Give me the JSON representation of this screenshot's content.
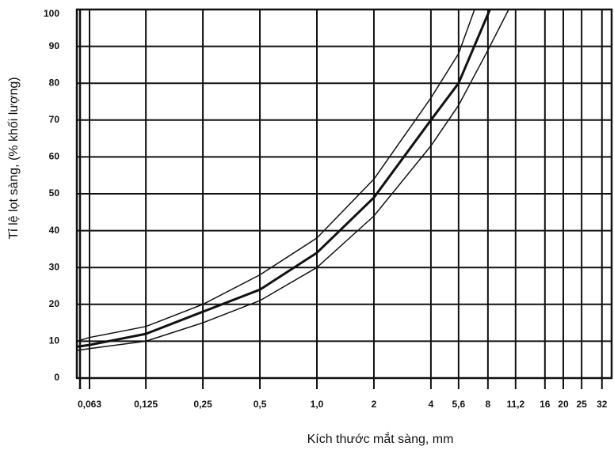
{
  "chart_data": {
    "type": "line",
    "log_x": true,
    "grid": true,
    "color": "#111",
    "x_label": "Kích thước mắt sàng, mm",
    "y_label": "Tỉ lệ lọt sàng, (% khối lượng)",
    "xlim": [
      0.054,
      36
    ],
    "ylim": [
      0,
      100
    ],
    "xticks": [
      {
        "value": 0.063,
        "label": "0,063"
      },
      {
        "value": 0.125,
        "label": "0,125"
      },
      {
        "value": 0.25,
        "label": "0,25"
      },
      {
        "value": 0.5,
        "label": "0,5"
      },
      {
        "value": 1,
        "label": "1,0"
      },
      2,
      4,
      {
        "value": 5.6,
        "label": "5,6"
      },
      8,
      {
        "value": 11.2,
        "label": "11,2"
      },
      16,
      20,
      25,
      32
    ],
    "yticks": [
      0,
      10,
      20,
      30,
      40,
      50,
      60,
      70,
      80,
      90,
      100
    ],
    "series": [
      {
        "width": 1.5,
        "x": [
          0.054,
          0.063,
          0.125,
          0.25,
          0.5,
          1,
          2,
          4,
          5.6,
          6.8
        ],
        "values": [
          10,
          11,
          14,
          20,
          28,
          38,
          54,
          76,
          88,
          100
        ]
      },
      {
        "width": 3,
        "x": [
          0.054,
          0.063,
          0.125,
          0.25,
          0.5,
          1,
          2,
          4,
          5.6,
          8.2
        ],
        "values": [
          8.5,
          9,
          12,
          18,
          24,
          34,
          49,
          70,
          80,
          100
        ]
      },
      {
        "width": 1.5,
        "x": [
          0.054,
          0.063,
          0.125,
          0.25,
          0.5,
          1,
          2,
          4,
          5.6,
          8,
          10.3
        ],
        "values": [
          7.5,
          8,
          10,
          15,
          21,
          30,
          44,
          63,
          74,
          89,
          100
        ]
      }
    ]
  }
}
